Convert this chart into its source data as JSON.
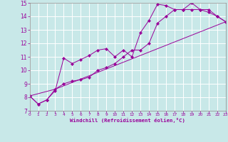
{
  "xlabel": "Windchill (Refroidissement éolien,°C)",
  "bg_color": "#c8e8e8",
  "line_color": "#990099",
  "xlim": [
    0,
    23
  ],
  "ylim": [
    7,
    15
  ],
  "yticks": [
    7,
    8,
    9,
    10,
    11,
    12,
    13,
    14,
    15
  ],
  "xticks": [
    0,
    1,
    2,
    3,
    4,
    5,
    6,
    7,
    8,
    9,
    10,
    11,
    12,
    13,
    14,
    15,
    16,
    17,
    18,
    19,
    20,
    21,
    22,
    23
  ],
  "series": [
    {
      "x": [
        0,
        1,
        2,
        3,
        4,
        5,
        6,
        7,
        8,
        9,
        10,
        11,
        12,
        13,
        14,
        15,
        16,
        17,
        18,
        19,
        20,
        21,
        22,
        23
      ],
      "y": [
        8.1,
        7.5,
        7.8,
        8.5,
        10.9,
        10.5,
        10.8,
        11.1,
        11.5,
        11.6,
        11.0,
        11.5,
        11.0,
        12.8,
        13.7,
        14.9,
        14.8,
        14.5,
        14.5,
        15.0,
        14.5,
        14.3,
        14.0,
        13.6
      ]
    },
    {
      "x": [
        0,
        1,
        2,
        3,
        4,
        5,
        6,
        7,
        8,
        9,
        10,
        11,
        12,
        13,
        14,
        15,
        16,
        17,
        18,
        19,
        20,
        21,
        22,
        23
      ],
      "y": [
        8.1,
        7.5,
        7.8,
        8.6,
        9.0,
        9.2,
        9.3,
        9.5,
        10.0,
        10.2,
        10.5,
        11.0,
        11.5,
        11.5,
        12.0,
        13.5,
        14.0,
        14.5,
        14.5,
        14.5,
        14.5,
        14.5,
        14.0,
        13.6
      ]
    },
    {
      "x": [
        0,
        3,
        23
      ],
      "y": [
        8.1,
        8.6,
        13.6
      ]
    }
  ]
}
